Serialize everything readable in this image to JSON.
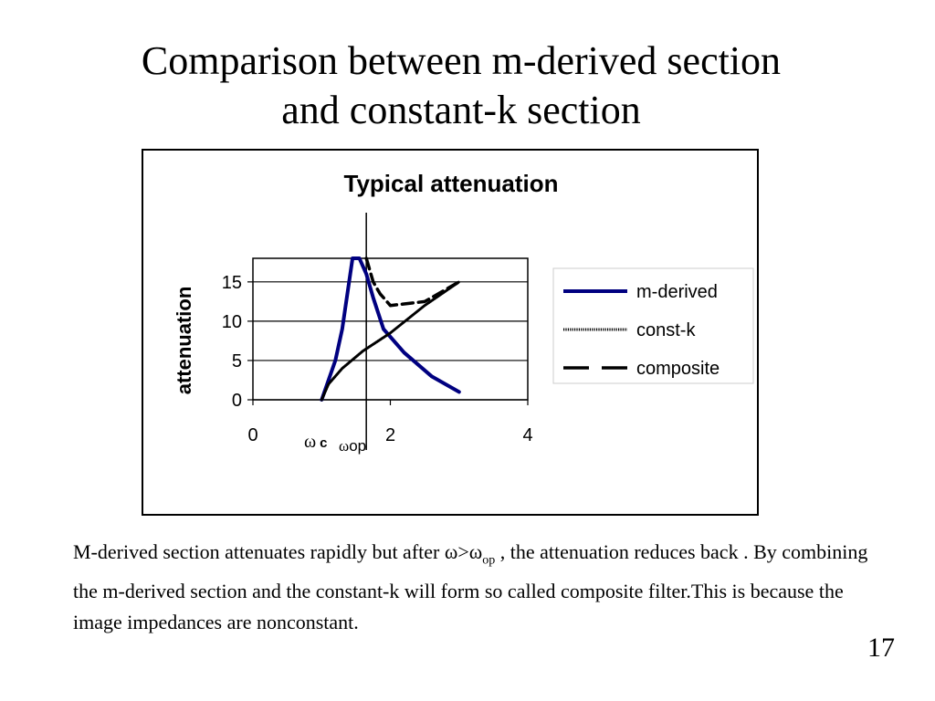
{
  "slide": {
    "title_line1": "Comparison between m-derived section",
    "title_line2": "and constant-k section",
    "caption_part1": "M-derived  section attenuates rapidly but after ",
    "caption_omega": "ω>ω",
    "caption_sub": "op",
    "caption_part2": " , the attenuation reduces back . By combining the m-derived section and the constant-k will form so called composite filter.This is because the image impedances are nonconstant.",
    "page_number": "17"
  },
  "chart_data": {
    "type": "line",
    "title": "Typical attenuation",
    "ylabel": "attenuation",
    "xlabel": "",
    "xlim": [
      0,
      4
    ],
    "ylim": [
      0,
      18
    ],
    "x_ticks": [
      0,
      2,
      4
    ],
    "y_ticks": [
      0,
      5,
      10,
      15
    ],
    "grid": "horizontal",
    "legend_position": "right",
    "omega_c_symbol": "ω",
    "omega_c_sub": "c",
    "omega_op_symbol": "ω",
    "omega_op_sub": "op",
    "series": [
      {
        "name": "m-derived",
        "color": "#000080",
        "style": "solid",
        "x": [
          1.0,
          1.2,
          1.3,
          1.45,
          1.55,
          1.65,
          1.75,
          1.9,
          2.2,
          2.6,
          3.0
        ],
        "y": [
          0,
          5,
          9,
          18,
          18,
          16,
          13,
          9,
          6,
          3,
          1
        ]
      },
      {
        "name": "const-k",
        "color": "#000000",
        "style": "dotted",
        "x": [
          1.0,
          1.1,
          1.3,
          1.6,
          2.0,
          2.5,
          3.0
        ],
        "y": [
          0,
          2,
          4,
          6.2,
          8.5,
          12,
          15
        ]
      },
      {
        "name": "composite",
        "color": "#000000",
        "style": "dashed",
        "x": [
          1.65,
          1.75,
          1.85,
          2.0,
          2.5,
          3.0
        ],
        "y": [
          18,
          15,
          13.5,
          12,
          12.5,
          15
        ]
      }
    ]
  }
}
